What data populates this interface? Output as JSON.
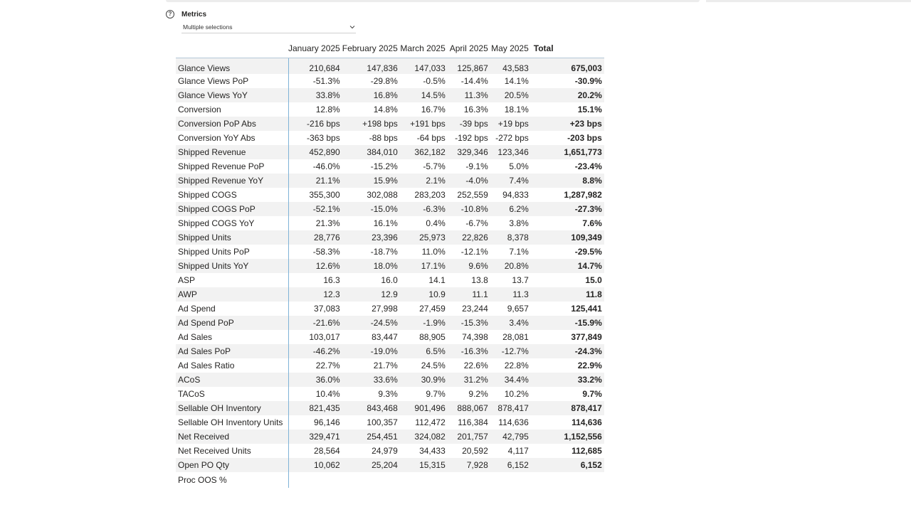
{
  "slicer": {
    "title": "Metrics",
    "selected_value": "Multiple selections"
  },
  "matrix": {
    "columns": [
      "January 2025",
      "February 2025",
      "March 2025",
      "April 2025",
      "May 2025",
      "Total"
    ],
    "rows": [
      {
        "label": "Glance Views",
        "values": [
          "210,684",
          "147,836",
          "147,033",
          "125,867",
          "43,583"
        ],
        "total": "675,003"
      },
      {
        "label": "Glance Views PoP",
        "values": [
          "-51.3%",
          "-29.8%",
          "-0.5%",
          "-14.4%",
          "14.1%"
        ],
        "total": "-30.9%"
      },
      {
        "label": "Glance Views YoY",
        "values": [
          "33.8%",
          "16.8%",
          "14.5%",
          "11.3%",
          "20.5%"
        ],
        "total": "20.2%"
      },
      {
        "label": "Conversion",
        "values": [
          "12.8%",
          "14.8%",
          "16.7%",
          "16.3%",
          "18.1%"
        ],
        "total": "15.1%"
      },
      {
        "label": "Conversion PoP Abs",
        "values": [
          "-216 bps",
          "+198 bps",
          "+191 bps",
          "-39 bps",
          "+19 bps"
        ],
        "total": "+23 bps"
      },
      {
        "label": "Conversion YoY Abs",
        "values": [
          "-363 bps",
          "-88 bps",
          "-64 bps",
          "-192 bps",
          "-272 bps"
        ],
        "total": "-203 bps"
      },
      {
        "label": "Shipped Revenue",
        "values": [
          "452,890",
          "384,010",
          "362,182",
          "329,346",
          "123,346"
        ],
        "total": "1,651,773"
      },
      {
        "label": "Shipped Revenue PoP",
        "values": [
          "-46.0%",
          "-15.2%",
          "-5.7%",
          "-9.1%",
          "5.0%"
        ],
        "total": "-23.4%"
      },
      {
        "label": "Shipped Revenue YoY",
        "values": [
          "21.1%",
          "15.9%",
          "2.1%",
          "-4.0%",
          "7.4%"
        ],
        "total": "8.8%"
      },
      {
        "label": "Shipped COGS",
        "values": [
          "355,300",
          "302,088",
          "283,203",
          "252,559",
          "94,833"
        ],
        "total": "1,287,982"
      },
      {
        "label": "Shipped COGS PoP",
        "values": [
          "-52.1%",
          "-15.0%",
          "-6.3%",
          "-10.8%",
          "6.2%"
        ],
        "total": "-27.3%"
      },
      {
        "label": "Shipped COGS YoY",
        "values": [
          "21.3%",
          "16.1%",
          "0.4%",
          "-6.7%",
          "3.8%"
        ],
        "total": "7.6%"
      },
      {
        "label": "Shipped Units",
        "values": [
          "28,776",
          "23,396",
          "25,973",
          "22,826",
          "8,378"
        ],
        "total": "109,349"
      },
      {
        "label": "Shipped Units PoP",
        "values": [
          "-58.3%",
          "-18.7%",
          "11.0%",
          "-12.1%",
          "7.1%"
        ],
        "total": "-29.5%"
      },
      {
        "label": "Shipped Units YoY",
        "values": [
          "12.6%",
          "18.0%",
          "17.1%",
          "9.6%",
          "20.8%"
        ],
        "total": "14.7%"
      },
      {
        "label": "ASP",
        "values": [
          "16.3",
          "16.0",
          "14.1",
          "13.8",
          "13.7"
        ],
        "total": "15.0"
      },
      {
        "label": "AWP",
        "values": [
          "12.3",
          "12.9",
          "10.9",
          "11.1",
          "11.3"
        ],
        "total": "11.8"
      },
      {
        "label": "Ad Spend",
        "values": [
          "37,083",
          "27,998",
          "27,459",
          "23,244",
          "9,657"
        ],
        "total": "125,441"
      },
      {
        "label": "Ad Spend PoP",
        "values": [
          "-21.6%",
          "-24.5%",
          "-1.9%",
          "-15.3%",
          "3.4%"
        ],
        "total": "-15.9%"
      },
      {
        "label": "Ad Sales",
        "values": [
          "103,017",
          "83,447",
          "88,905",
          "74,398",
          "28,081"
        ],
        "total": "377,849"
      },
      {
        "label": "Ad Sales PoP",
        "values": [
          "-46.2%",
          "-19.0%",
          "6.5%",
          "-16.3%",
          "-12.7%"
        ],
        "total": "-24.3%"
      },
      {
        "label": "Ad Sales Ratio",
        "values": [
          "22.7%",
          "21.7%",
          "24.5%",
          "22.6%",
          "22.8%"
        ],
        "total": "22.9%"
      },
      {
        "label": "ACoS",
        "values": [
          "36.0%",
          "33.6%",
          "30.9%",
          "31.2%",
          "34.4%"
        ],
        "total": "33.2%"
      },
      {
        "label": "TACoS",
        "values": [
          "10.4%",
          "9.3%",
          "9.7%",
          "9.2%",
          "10.2%"
        ],
        "total": "9.7%"
      },
      {
        "label": "Sellable OH Inventory",
        "values": [
          "821,435",
          "843,468",
          "901,496",
          "888,067",
          "878,417"
        ],
        "total": "878,417"
      },
      {
        "label": "Sellable OH Inventory Units",
        "values": [
          "96,146",
          "100,357",
          "112,472",
          "116,384",
          "114,636"
        ],
        "total": "114,636"
      },
      {
        "label": "Net Received",
        "values": [
          "329,471",
          "254,451",
          "324,082",
          "201,757",
          "42,795"
        ],
        "total": "1,152,556"
      },
      {
        "label": "Net Received Units",
        "values": [
          "28,564",
          "24,979",
          "34,433",
          "20,592",
          "4,117"
        ],
        "total": "112,685"
      },
      {
        "label": "Open PO Qty",
        "values": [
          "10,062",
          "25,204",
          "15,315",
          "7,928",
          "6,152"
        ],
        "total": "6,152"
      },
      {
        "label": "Proc OOS %",
        "values": [
          "",
          "",
          "",
          "",
          ""
        ],
        "total": ""
      }
    ]
  }
}
